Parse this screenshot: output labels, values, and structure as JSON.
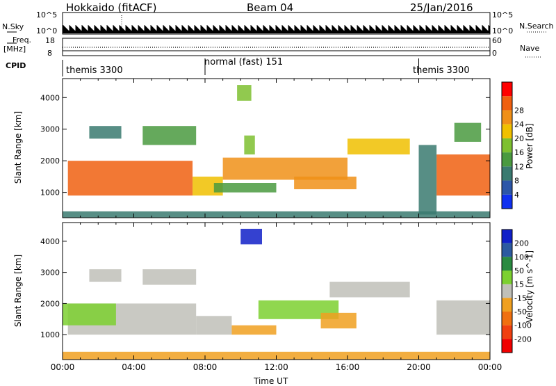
{
  "header": {
    "radar": "Hokkaido (fitACF)",
    "beam": "Beam 04",
    "date": "25/Jan/2016"
  },
  "top_panels": {
    "nsky_label": "N.Sky",
    "nsky_ticks": [
      "10^5",
      "10^0"
    ],
    "nsearch_label": "N.Search",
    "nsearch_ticks": [
      "10^5",
      "10^0"
    ],
    "freq_label": "Freq.",
    "freq_unit": "[MHz]",
    "freq_ticks": [
      "18",
      "8"
    ],
    "nave_label": "Nave",
    "nave_ticks": [
      "60",
      "0"
    ],
    "cpid_label": "CPID",
    "cpid_segments": [
      {
        "name": "themis 3300",
        "start_hour": 0,
        "end_hour": 8
      },
      {
        "name": "normal (fast) 151",
        "start_hour": 8,
        "end_hour": 20
      },
      {
        "name": "themis 3300",
        "start_hour": 20,
        "end_hour": 24
      }
    ]
  },
  "time_axis": {
    "label": "Time UT",
    "ticks": [
      "00:00",
      "04:00",
      "08:00",
      "12:00",
      "16:00",
      "20:00",
      "00:00"
    ]
  },
  "chart_data": [
    {
      "type": "heatmap",
      "name": "power",
      "xlabel": "Time UT",
      "ylabel": "Slant Range [km]",
      "x_range_hours": [
        0,
        24
      ],
      "ylim": [
        200,
        4600
      ],
      "y_ticks": [
        1000,
        2000,
        3000,
        4000
      ],
      "colorbar": {
        "label": "Power [dB]",
        "ticks": [
          "4",
          "8",
          "12",
          "16",
          "20",
          "24",
          "28"
        ],
        "colors": [
          "#1030f0",
          "#2c56a8",
          "#3a7a70",
          "#4a9a40",
          "#7ec030",
          "#f0c000",
          "#f09018",
          "#f06010",
          "#ff0000"
        ]
      },
      "regions": [
        {
          "t0": 0.3,
          "t1": 7.3,
          "r0": 900,
          "r1": 2000,
          "value": 28
        },
        {
          "t0": 7.3,
          "t1": 9.0,
          "r0": 900,
          "r1": 1500,
          "value": 18
        },
        {
          "t0": 8.5,
          "t1": 12.0,
          "r0": 1000,
          "r1": 1300,
          "value": 14
        },
        {
          "t0": 9.0,
          "t1": 16.0,
          "r0": 1400,
          "r1": 2100,
          "value": 22
        },
        {
          "t0": 13.0,
          "t1": 16.5,
          "r0": 1100,
          "r1": 1500,
          "value": 24
        },
        {
          "t0": 16.0,
          "t1": 19.5,
          "r0": 2200,
          "r1": 2700,
          "value": 18
        },
        {
          "t0": 21.0,
          "t1": 24.0,
          "r0": 900,
          "r1": 2200,
          "value": 26
        },
        {
          "t0": 20.0,
          "t1": 21.0,
          "r0": 300,
          "r1": 2500,
          "value": 8
        },
        {
          "t0": 1.5,
          "t1": 3.3,
          "r0": 2700,
          "r1": 3100,
          "value": 10
        },
        {
          "t0": 4.5,
          "t1": 7.5,
          "r0": 2500,
          "r1": 3100,
          "value": 14
        },
        {
          "t0": 9.8,
          "t1": 10.6,
          "r0": 3900,
          "r1": 4400,
          "value": 16
        },
        {
          "t0": 10.2,
          "t1": 10.8,
          "r0": 2200,
          "r1": 2800,
          "value": 16
        },
        {
          "t0": 22.0,
          "t1": 23.5,
          "r0": 2600,
          "r1": 3200,
          "value": 12
        },
        {
          "t0": 0.0,
          "t1": 24.0,
          "r0": 200,
          "r1": 400,
          "value": 10
        }
      ]
    },
    {
      "type": "heatmap",
      "name": "velocity",
      "xlabel": "Time UT",
      "ylabel": "Slant Range [km]",
      "x_range_hours": [
        0,
        24
      ],
      "ylim": [
        200,
        4600
      ],
      "y_ticks": [
        1000,
        2000,
        3000,
        4000
      ],
      "colorbar": {
        "label": "Velocity [m s^-1]",
        "ticks": [
          "200",
          "100",
          "50",
          "15",
          "-15",
          "-50",
          "-100",
          "-200"
        ],
        "colors": [
          "#1020c8",
          "#2c5aa0",
          "#2a8a40",
          "#7cd030",
          "#c0c0b8",
          "#f0a020",
          "#f07010",
          "#f04010",
          "#f00000"
        ]
      },
      "regions": [
        {
          "t0": 0.3,
          "t1": 7.5,
          "r0": 1000,
          "r1": 2000,
          "value": 0
        },
        {
          "t0": 7.5,
          "t1": 9.5,
          "r0": 1000,
          "r1": 1600,
          "value": 0
        },
        {
          "t0": 9.5,
          "t1": 12.0,
          "r0": 1000,
          "r1": 1300,
          "value": -30
        },
        {
          "t0": 11.0,
          "t1": 15.5,
          "r0": 1500,
          "r1": 2100,
          "value": 30
        },
        {
          "t0": 14.5,
          "t1": 16.5,
          "r0": 1200,
          "r1": 1700,
          "value": -40
        },
        {
          "t0": 15.0,
          "t1": 19.5,
          "r0": 2200,
          "r1": 2700,
          "value": 0
        },
        {
          "t0": 21.0,
          "t1": 24.0,
          "r0": 1000,
          "r1": 2100,
          "value": 0
        },
        {
          "t0": 10.0,
          "t1": 11.2,
          "r0": 3900,
          "r1": 4400,
          "value": 220
        },
        {
          "t0": 0.0,
          "t1": 3.0,
          "r0": 1300,
          "r1": 2000,
          "value": 30
        },
        {
          "t0": 0.0,
          "t1": 24.0,
          "r0": 200,
          "r1": 450,
          "value": -40
        },
        {
          "t0": 4.5,
          "t1": 7.5,
          "r0": 2600,
          "r1": 3100,
          "value": 0
        },
        {
          "t0": 1.5,
          "t1": 3.3,
          "r0": 2700,
          "r1": 3100,
          "value": 0
        }
      ]
    }
  ]
}
